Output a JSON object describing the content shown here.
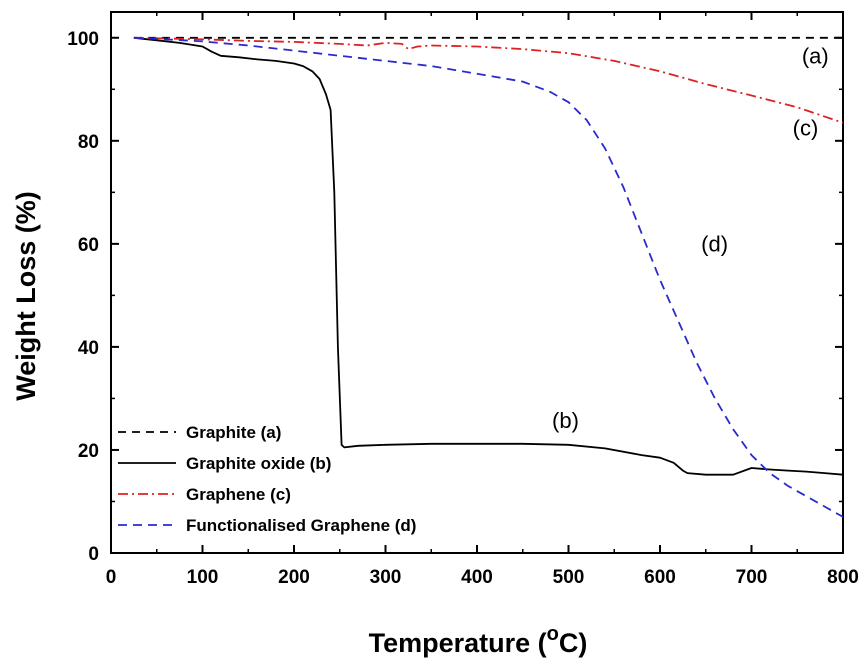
{
  "chart_data": {
    "type": "line",
    "title": "",
    "xlabel": "Temperature (",
    "xlabel_sup": "o",
    "xlabel_tail": "C)",
    "ylabel": "Weight Loss (%)",
    "xlim": [
      0,
      800
    ],
    "ylim": [
      0,
      105
    ],
    "xticks": [
      0,
      100,
      200,
      300,
      400,
      500,
      600,
      700,
      800
    ],
    "yticks": [
      0,
      20,
      40,
      60,
      80,
      100
    ],
    "grid": false,
    "legend_position": "bottom-left",
    "series": [
      {
        "name": "Graphite (a)",
        "label": "(a)",
        "color": "#000000",
        "dash": "8,6",
        "x": [
          25,
          800
        ],
        "y": [
          100,
          100
        ]
      },
      {
        "name": "Graphite oxide (b)",
        "label": "(b)",
        "color": "#000000",
        "dash": "",
        "x": [
          25,
          50,
          75,
          100,
          110,
          120,
          140,
          160,
          180,
          200,
          210,
          220,
          228,
          235,
          240,
          244,
          248,
          252,
          255,
          270,
          300,
          350,
          400,
          450,
          500,
          540,
          580,
          600,
          615,
          625,
          630,
          650,
          680,
          700,
          720,
          740,
          760,
          780,
          800
        ],
        "y": [
          100,
          99.5,
          99,
          98.3,
          97.3,
          96.5,
          96.2,
          95.8,
          95.5,
          95,
          94.5,
          93.5,
          92,
          89,
          86,
          70,
          40,
          21,
          20.5,
          20.8,
          21,
          21.2,
          21.2,
          21.2,
          21,
          20.3,
          19,
          18.5,
          17.5,
          16,
          15.5,
          15.2,
          15.2,
          16.5,
          16.2,
          16,
          15.8,
          15.5,
          15.2
        ]
      },
      {
        "name": "Graphene (c)",
        "label": "(c)",
        "color": "#dd2222",
        "dash": "10,4,2,4",
        "x": [
          25,
          100,
          150,
          200,
          250,
          280,
          300,
          318,
          325,
          335,
          350,
          400,
          450,
          500,
          550,
          600,
          650,
          700,
          750,
          800
        ],
        "y": [
          100,
          99.7,
          99.4,
          99.2,
          98.8,
          98.5,
          99,
          98.8,
          97.8,
          98.3,
          98.5,
          98.3,
          97.8,
          97,
          95.5,
          93.5,
          91,
          88.8,
          86.5,
          83.5
        ]
      },
      {
        "name": "Functionalised Graphene (d)",
        "label": "(d)",
        "color": "#2a2ad0",
        "dash": "9,6",
        "x": [
          25,
          50,
          100,
          150,
          200,
          250,
          300,
          350,
          400,
          450,
          480,
          500,
          520,
          540,
          560,
          580,
          600,
          620,
          640,
          660,
          680,
          700,
          720,
          740,
          760,
          780,
          800
        ],
        "y": [
          100,
          99.8,
          99.3,
          98.5,
          97.5,
          96.5,
          95.5,
          94.5,
          93,
          91.5,
          89.5,
          87.5,
          84,
          78.5,
          71,
          62,
          53,
          45,
          37,
          30,
          24,
          19,
          15.5,
          13,
          11,
          9,
          7
        ]
      }
    ],
    "annotations": [
      {
        "text": "(a)",
        "x": 755,
        "y": 95
      },
      {
        "text": "(b)",
        "x": 482,
        "y": 24.3
      },
      {
        "text": "(c)",
        "x": 745,
        "y": 81
      },
      {
        "text": "(d)",
        "x": 645,
        "y": 58.5
      }
    ]
  }
}
